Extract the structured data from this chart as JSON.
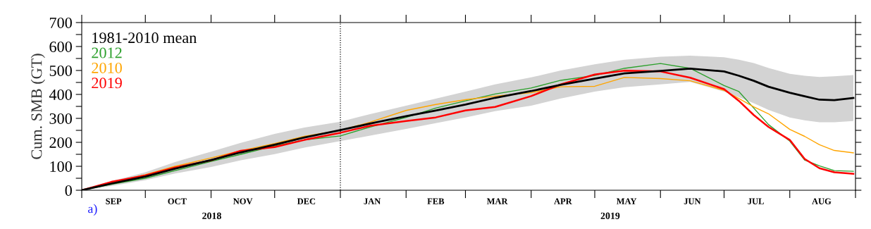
{
  "chart_data": {
    "type": "line",
    "ylabel": "Cum. SMB (GT)",
    "x": [
      "2018-09-01",
      "2018-09-15",
      "2018-10-01",
      "2018-10-15",
      "2018-11-01",
      "2018-11-15",
      "2018-12-01",
      "2018-12-15",
      "2019-01-01",
      "2019-01-15",
      "2019-02-01",
      "2019-02-15",
      "2019-03-01",
      "2019-03-15",
      "2019-04-01",
      "2019-04-15",
      "2019-05-01",
      "2019-05-15",
      "2019-06-01",
      "2019-06-15",
      "2019-07-01",
      "2019-07-08",
      "2019-07-15",
      "2019-07-22",
      "2019-08-01",
      "2019-08-08",
      "2019-08-15",
      "2019-08-22",
      "2019-08-31"
    ],
    "series": [
      {
        "name": "1981-2010 mean",
        "color": "#000000",
        "values": [
          0,
          28,
          57,
          90,
          126,
          158,
          190,
          220,
          251,
          278,
          309,
          333,
          358,
          386,
          414,
          440,
          466,
          488,
          498,
          508,
          496,
          478,
          457,
          432,
          407,
          392,
          378,
          376,
          385
        ],
        "lower": [
          0,
          18,
          42,
          70,
          97,
          125,
          151,
          178,
          205,
          228,
          256,
          280,
          304,
          330,
          353,
          383,
          412,
          430,
          442,
          452,
          412,
          388,
          363,
          335,
          304,
          292,
          284,
          284,
          289
        ],
        "upper": [
          0,
          38,
          75,
          118,
          161,
          198,
          235,
          262,
          286,
          318,
          353,
          382,
          412,
          442,
          471,
          500,
          526,
          545,
          557,
          562,
          555,
          545,
          531,
          510,
          486,
          478,
          473,
          476,
          481
        ]
      },
      {
        "name": "2012",
        "color": "#2ca02c",
        "values": [
          0,
          25,
          50,
          82,
          120,
          150,
          185,
          210,
          227,
          264,
          304,
          343,
          373,
          402,
          427,
          459,
          479,
          509,
          529,
          509,
          437,
          412,
          343,
          274,
          205,
          126,
          102,
          82,
          79
        ]
      },
      {
        "name": "2010",
        "color": "#ffa500",
        "values": [
          0,
          33,
          65,
          100,
          135,
          165,
          195,
          225,
          250,
          284,
          333,
          358,
          378,
          393,
          407,
          432,
          434,
          471,
          466,
          457,
          417,
          383,
          348,
          319,
          254,
          225,
          190,
          166,
          156
        ]
      },
      {
        "name": "2019",
        "color": "#ff0000",
        "values": [
          0,
          35,
          62,
          95,
          125,
          165,
          180,
          210,
          240,
          269,
          289,
          304,
          333,
          348,
          393,
          442,
          483,
          499,
          496,
          470,
          422,
          373,
          314,
          264,
          210,
          131,
          92,
          75,
          69
        ]
      }
    ],
    "xlim": [
      "2018-09-01",
      "2019-09-01"
    ],
    "xticks": [
      {
        "value": "2018-09-01",
        "label": null
      },
      {
        "value": "2018-10-01",
        "label": null
      },
      {
        "value": "2018-11-01",
        "label": null
      },
      {
        "value": "2018-12-01",
        "label": null
      },
      {
        "value": "2019-01-01",
        "label": null
      },
      {
        "value": "2019-02-01",
        "label": null
      },
      {
        "value": "2019-03-01",
        "label": null
      },
      {
        "value": "2019-04-01",
        "label": null
      },
      {
        "value": "2019-05-01",
        "label": null
      },
      {
        "value": "2019-06-01",
        "label": null
      },
      {
        "value": "2019-07-01",
        "label": null
      },
      {
        "value": "2019-08-01",
        "label": null
      },
      {
        "value": "2019-09-01",
        "label": null
      },
      {
        "value": "2018-09-16",
        "label": "SEP"
      },
      {
        "value": "2018-10-16",
        "label": "OCT"
      },
      {
        "value": "2018-11-16",
        "label": "NOV"
      },
      {
        "value": "2018-12-16",
        "label": "DEC"
      },
      {
        "value": "2019-01-16",
        "label": "JAN"
      },
      {
        "value": "2019-02-15",
        "label": "FEB"
      },
      {
        "value": "2019-03-16",
        "label": "MAR"
      },
      {
        "value": "2019-04-16",
        "label": "APR"
      },
      {
        "value": "2019-05-16",
        "label": "MAY"
      },
      {
        "value": "2019-06-16",
        "label": "JUN"
      },
      {
        "value": "2019-07-16",
        "label": "JUL"
      },
      {
        "value": "2019-08-16",
        "label": "AUG"
      }
    ],
    "ylim": [
      0,
      700
    ],
    "yticks": [
      0,
      {
        "value": 50,
        "label": null
      },
      100,
      {
        "value": 150,
        "label": null
      },
      200,
      {
        "value": 250,
        "label": null
      },
      300,
      {
        "value": 350,
        "label": null
      },
      400,
      {
        "value": 450,
        "label": null
      },
      500,
      {
        "value": 550,
        "label": null
      },
      600,
      {
        "value": 650,
        "label": null
      },
      700
    ],
    "ref_lines": [
      {
        "axis": "x",
        "value": "2019-01-01",
        "color": "#000000",
        "line_style": "dotted"
      }
    ],
    "annotations": [
      "2018",
      "2019",
      "a)"
    ],
    "legend": "top left",
    "grid": false,
    "marker": "none",
    "line_style": "solid"
  }
}
